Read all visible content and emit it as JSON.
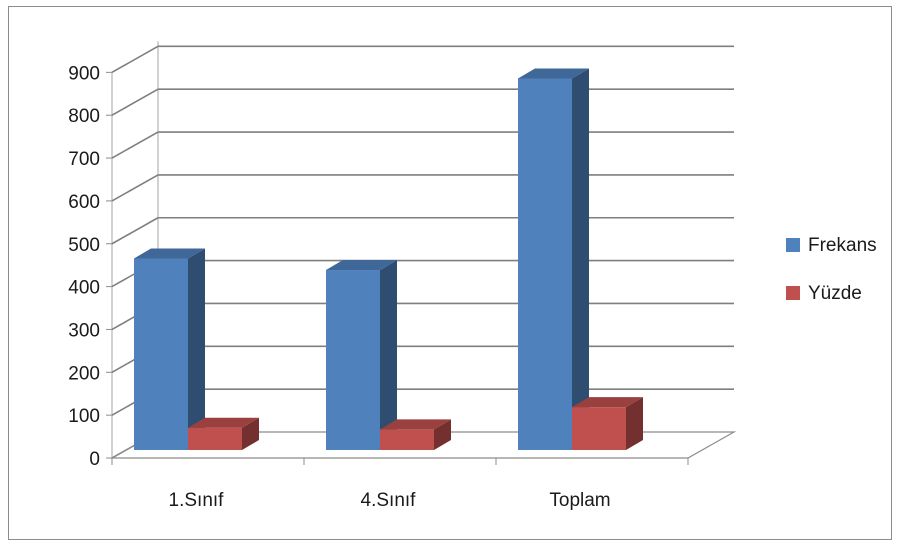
{
  "chart_data": {
    "type": "bar",
    "subtype": "3d-clustered-column",
    "title": "",
    "xlabel": "",
    "ylabel": "",
    "categories": [
      "1.Sınıf",
      "4.Sınıf",
      "Toplam"
    ],
    "series": [
      {
        "name": "Frekans",
        "values": [
          447,
          420,
          867
        ],
        "color": "#4F81BD"
      },
      {
        "name": "Yüzde",
        "values": [
          52,
          48,
          100
        ],
        "color": "#C0504D"
      }
    ],
    "ylim": [
      0,
      900
    ],
    "yticks": [
      "0",
      "100",
      "200",
      "300",
      "400",
      "500",
      "600",
      "700",
      "800",
      "900"
    ],
    "grid": true,
    "legend_position": "right"
  }
}
